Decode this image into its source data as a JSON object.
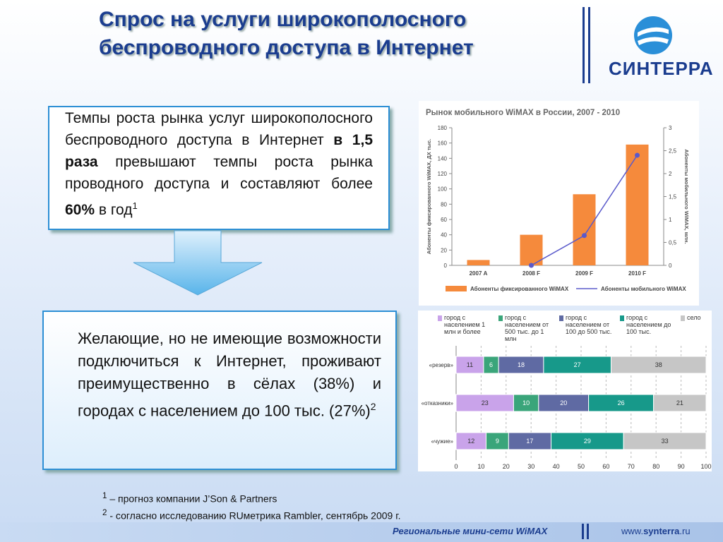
{
  "header": {
    "title": "Спрос на услуги широкополосного беспроводного доступа в Интернет",
    "logo": "СИНТЕРРА"
  },
  "box1": {
    "text1": "Темпы роста рынка услуг широкополосного беспроводного доступа в Интернет ",
    "bold1": "в 1,5 раза",
    "text2": " превышают темпы роста рынка проводного доступа и составляют более ",
    "bold2": "60%",
    "text3": " в год",
    "sup": "1"
  },
  "box2": {
    "text": "Желающие, но не имеющие возможности подключиться к Интернет, проживают преимущественно в сёлах (38%) и городах с населением до 100 тыс. (27%)",
    "sup": "2"
  },
  "footnotes": [
    {
      "mark": "1",
      "text": "– прогноз компании J’Son & Partners"
    },
    {
      "mark": "2",
      "text": "- согласно исследованию RUметрика Rambler, сентябрь 2009 г."
    }
  ],
  "footer": {
    "caption": "Региональные мини-сети WiMAX",
    "url_prefix": "www.",
    "url_main": "synterra",
    "url_suffix": ".ru"
  },
  "chart_data": [
    {
      "type": "bar",
      "title": "Рынок мобильного WiMAX в России, 2007 - 2010",
      "y_label": "Абоненты фиксированного WiMAX, ДХ тыс.",
      "y2_label": "Абоненты мобильного WiMAX, млн.",
      "categories": [
        "2007 А",
        "2008 F",
        "2009 F",
        "2010 F"
      ],
      "series": [
        {
          "name": "Абоненты фиксированного WiMAX",
          "color": "#f58a3c",
          "values": [
            7,
            40,
            93,
            158
          ]
        },
        {
          "name": "Абоненты мобильного WiMAX",
          "color": "#5a5acb",
          "type": "line",
          "axis": "y2",
          "values": [
            null,
            0,
            0.65,
            2.4
          ]
        }
      ],
      "ylim": [
        0,
        180
      ],
      "yticks": [
        0,
        20,
        40,
        60,
        80,
        100,
        120,
        140,
        160,
        180
      ],
      "y2lim": [
        0,
        3
      ],
      "y2ticks": [
        0,
        {
          "value": 0.5,
          "label": "0,5"
        },
        1,
        {
          "value": 1.5,
          "label": "1,5"
        },
        2,
        {
          "value": 2.5,
          "label": "2,5"
        },
        3
      ]
    },
    {
      "type": "stacked-bar",
      "orientation": "horizontal",
      "categories": [
        "«резерв»",
        "«отказники»",
        "«чужие»"
      ],
      "series": [
        {
          "name": "город с населением 1 млн и более",
          "color": "#c9a3ea",
          "values": [
            11,
            23,
            12
          ]
        },
        {
          "name": "город с населением от 500 тыс. до 1 млн",
          "color": "#3aa57a",
          "values": [
            6,
            10,
            9
          ]
        },
        {
          "name": "город с населением от 100 до 500 тыс.",
          "color": "#5f6aa3",
          "values": [
            18,
            20,
            17
          ]
        },
        {
          "name": "город с населением до 100 тыс.",
          "color": "#17998a",
          "values": [
            27,
            26,
            29
          ]
        },
        {
          "name": "село",
          "color": "#c6c6c6",
          "values": [
            38,
            21,
            33
          ]
        }
      ],
      "xlim": [
        0,
        100
      ],
      "xticks": [
        0,
        10,
        20,
        30,
        40,
        50,
        60,
        70,
        80,
        90,
        100
      ]
    }
  ]
}
